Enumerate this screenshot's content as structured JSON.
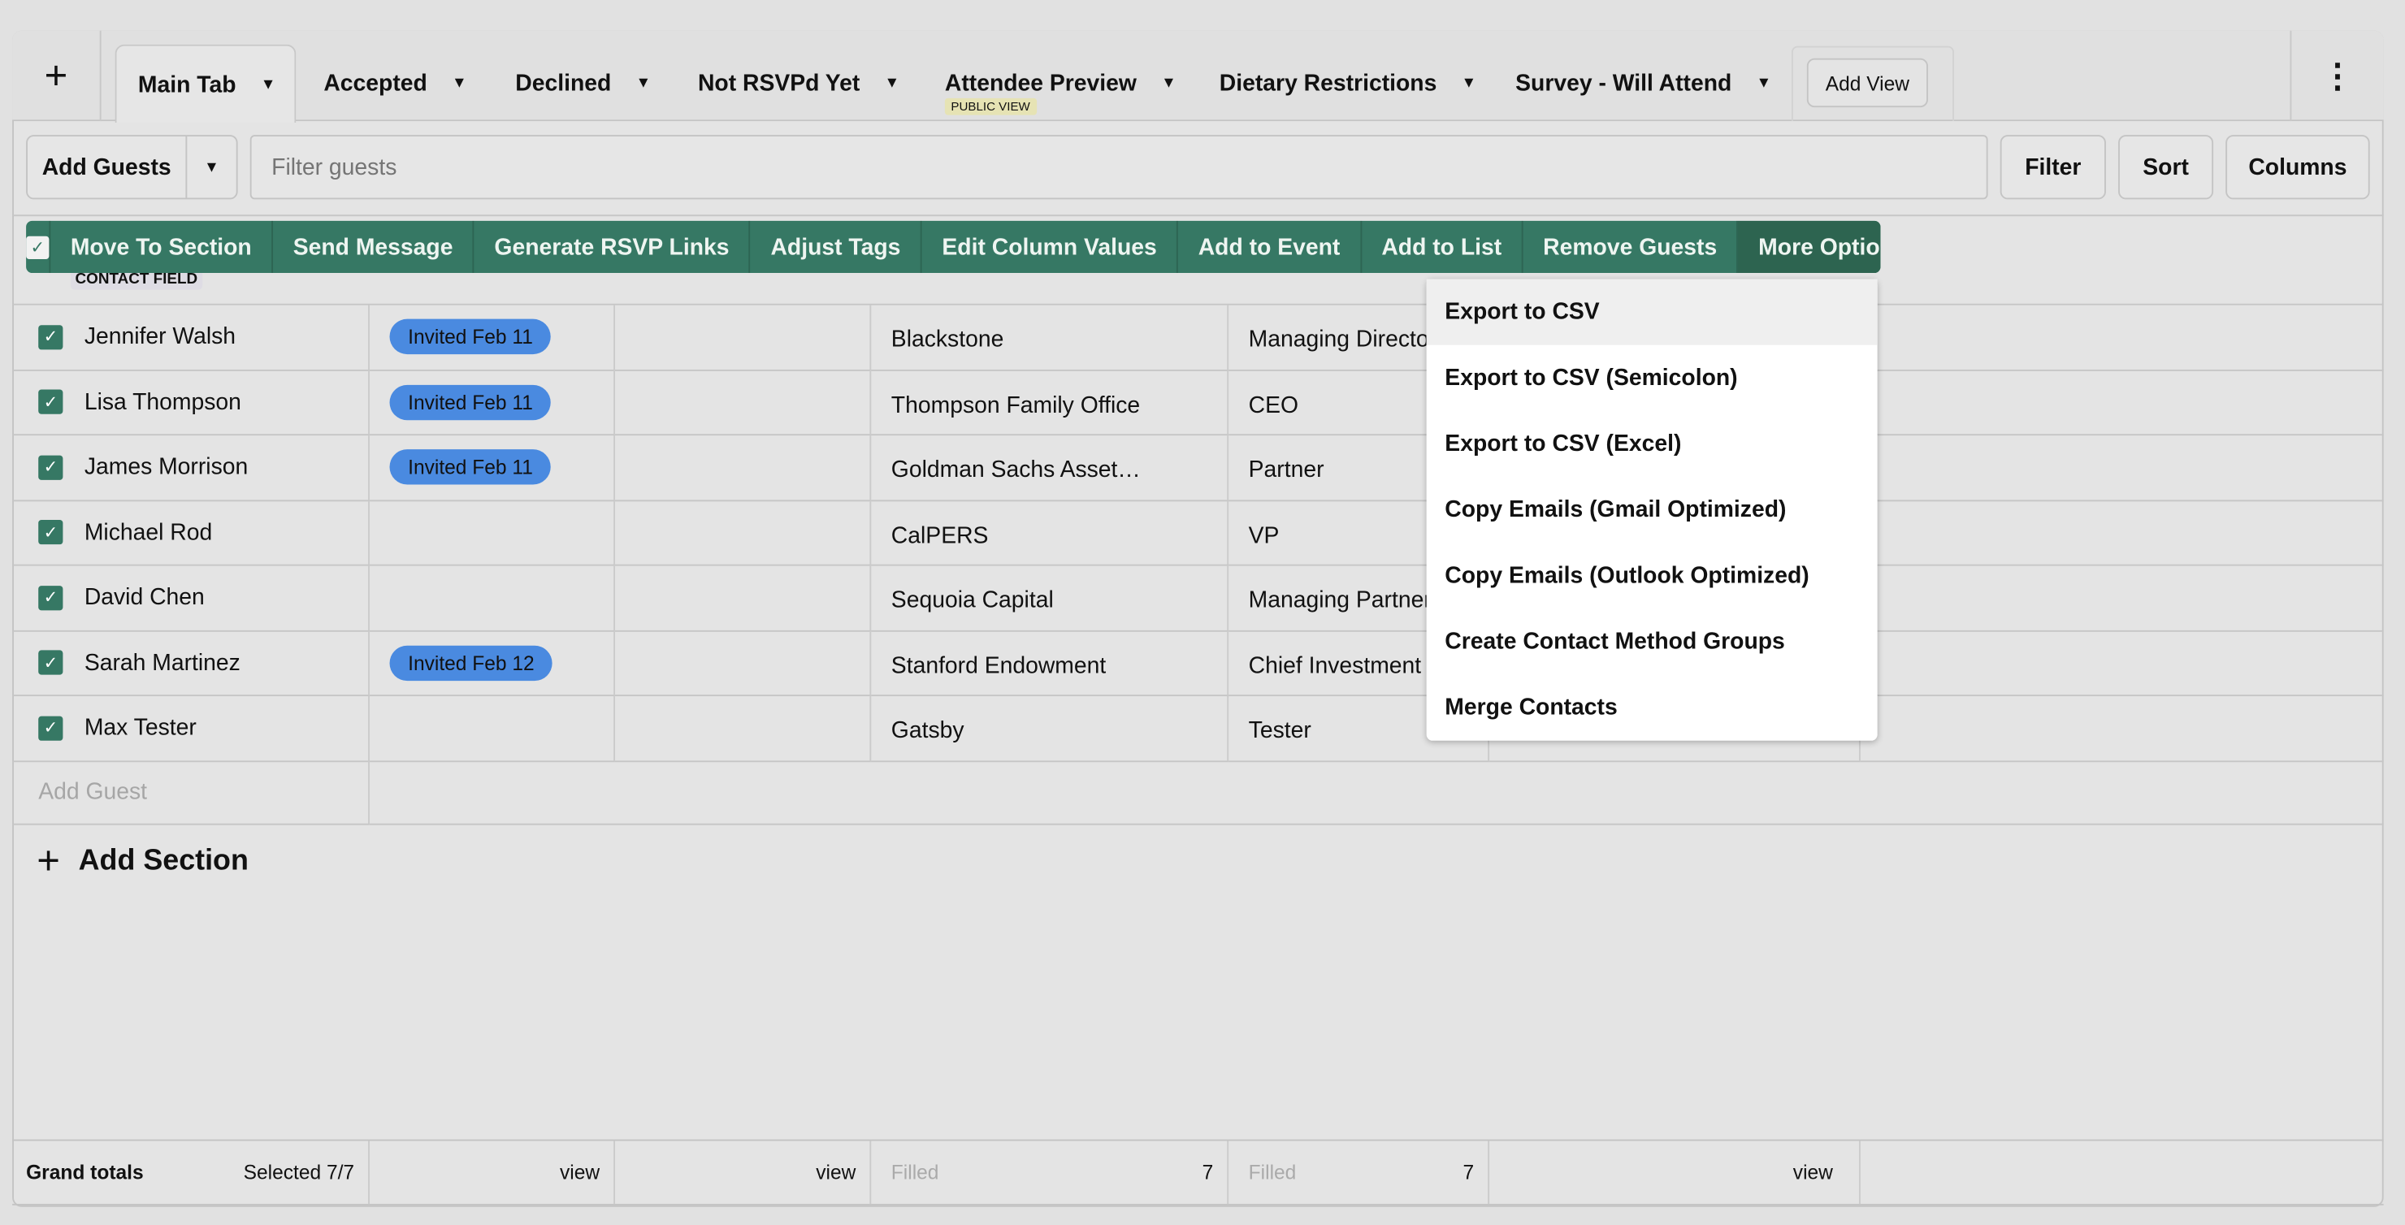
{
  "tabs": [
    {
      "label": "Main Tab",
      "active": true
    },
    {
      "label": "Accepted"
    },
    {
      "label": "Declined"
    },
    {
      "label": "Not RSVPd Yet"
    },
    {
      "label": "Attendee Preview",
      "badge": "PUBLIC VIEW"
    },
    {
      "label": "Dietary Restrictions"
    },
    {
      "label": "Survey - Will Attend"
    }
  ],
  "add_view": "Add View",
  "toolbar": {
    "add_guests": "Add Guests",
    "filter_placeholder": "Filter guests",
    "filter": "Filter",
    "sort": "Sort",
    "columns": "Columns"
  },
  "bulk_actions": [
    "Move To Section",
    "Send Message",
    "Generate RSVP Links",
    "Adjust Tags",
    "Edit Column Values",
    "Add to Event",
    "Add to List",
    "Remove Guests",
    "More Options"
  ],
  "contact_field_label": "CONTACT FIELD",
  "rows": [
    {
      "name": "Jennifer Walsh",
      "status": "Invited Feb 11",
      "company": "Blackstone",
      "title": "Managing Director"
    },
    {
      "name": "Lisa Thompson",
      "status": "Invited Feb 11",
      "company": "Thompson Family Office",
      "title": "CEO"
    },
    {
      "name": "James Morrison",
      "status": "Invited Feb 11",
      "company": "Goldman Sachs Asset…",
      "title": "Partner"
    },
    {
      "name": "Michael Rod",
      "status": "",
      "company": "CalPERS",
      "title": "VP"
    },
    {
      "name": "David Chen",
      "status": "",
      "company": "Sequoia Capital",
      "title": "Managing Partner"
    },
    {
      "name": "Sarah Martinez",
      "status": "Invited Feb 12",
      "company": "Stanford Endowment",
      "title": "Chief Investment Officer"
    },
    {
      "name": "Max Tester",
      "status": "",
      "company": "Gatsby",
      "title": "Tester"
    }
  ],
  "add_guest": "Add Guest",
  "add_section": "Add Section",
  "footer": {
    "grand_totals": "Grand totals",
    "selected": "Selected 7/7",
    "view": "view",
    "filled": "Filled",
    "count": "7"
  },
  "more_menu": [
    "Export to CSV",
    "Export to CSV (Semicolon)",
    "Export to CSV (Excel)",
    "Copy Emails (Gmail Optimized)",
    "Copy Emails (Outlook Optimized)",
    "Create Contact Method Groups",
    "Merge Contacts"
  ],
  "colors": {
    "accent": "#367864",
    "pill": "#4a8ae0"
  }
}
